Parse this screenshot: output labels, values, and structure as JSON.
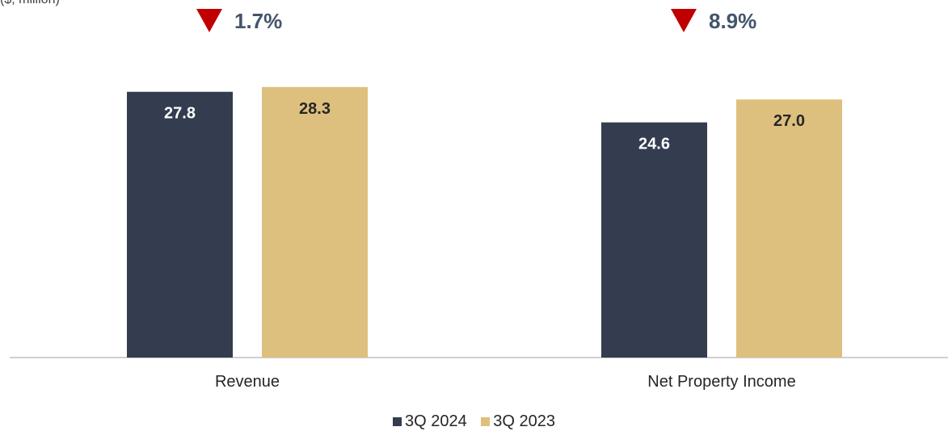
{
  "unit_label": "($, million)",
  "chart_data": {
    "type": "bar",
    "categories": [
      "Revenue",
      "Net Property Income"
    ],
    "series": [
      {
        "name": "3Q 2024",
        "values": [
          27.8,
          24.6
        ],
        "color": "#333d4f",
        "label_color": "#ffffff"
      },
      {
        "name": "3Q 2023",
        "values": [
          28.3,
          27.0
        ],
        "color": "#dec07e",
        "label_color": "#262626"
      }
    ],
    "value_labels": [
      [
        "27.8",
        "24.6"
      ],
      [
        "28.3",
        "27.0"
      ]
    ],
    "changes": [
      {
        "direction": "down",
        "label": "1.7%"
      },
      {
        "direction": "down",
        "label": "8.9%"
      }
    ],
    "change_icon_color": "#c00000",
    "ylim": [
      0,
      32
    ],
    "legend_position": "bottom-center"
  }
}
